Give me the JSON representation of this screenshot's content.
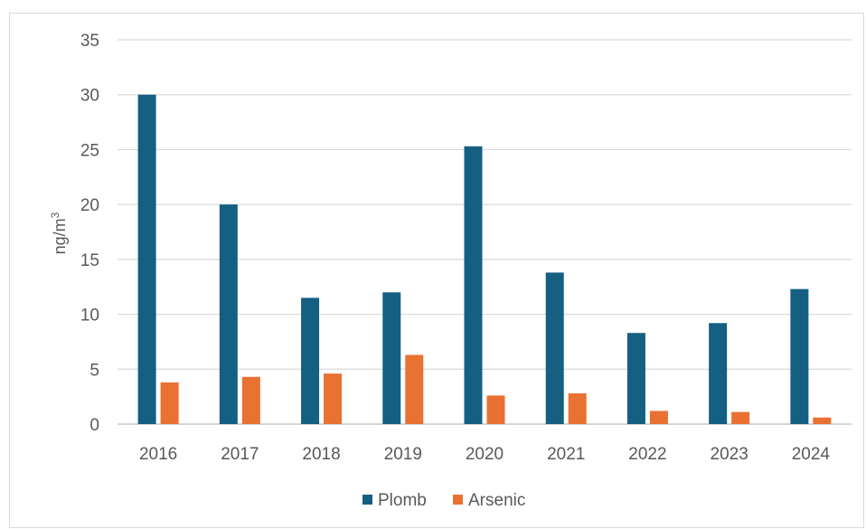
{
  "chart_data": {
    "type": "bar",
    "categories": [
      "2016",
      "2017",
      "2018",
      "2019",
      "2020",
      "2021",
      "2022",
      "2023",
      "2024"
    ],
    "series": [
      {
        "name": "Plomb",
        "color": "#156082",
        "values": [
          30,
          20,
          11.5,
          12,
          25.3,
          13.8,
          8.3,
          9.2,
          12.3
        ]
      },
      {
        "name": "Arsenic",
        "color": "#E97132",
        "values": [
          3.8,
          4.3,
          4.6,
          6.3,
          2.6,
          2.8,
          1.2,
          1.1,
          0.6
        ]
      }
    ],
    "ylabel": "ng/m",
    "ylabel_superscript": "3",
    "ylim": [
      0,
      35
    ],
    "yticks": [
      0,
      5,
      10,
      15,
      20,
      25,
      30,
      35
    ],
    "grid": true,
    "legend_position": "bottom"
  }
}
